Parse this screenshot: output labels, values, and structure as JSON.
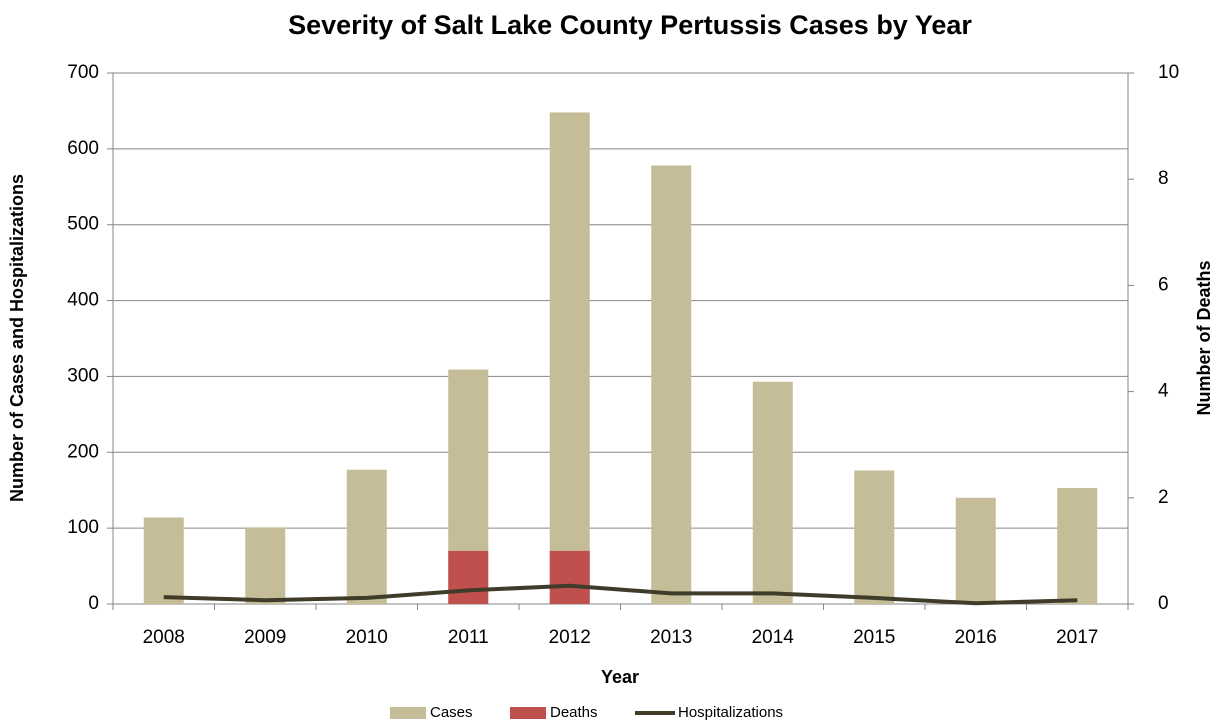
{
  "chart_data": {
    "type": "bar",
    "title": "Severity of Salt Lake County Pertussis Cases by Year",
    "x_label": "Year",
    "y_label": "Number of Cases and Hospitalizations",
    "y2_label": "Number of Deaths",
    "categories": [
      "2008",
      "2009",
      "2010",
      "2011",
      "2012",
      "2013",
      "2014",
      "2015",
      "2016",
      "2017"
    ],
    "series": [
      {
        "name": "Cases",
        "type": "bar",
        "color": "#c4bd97",
        "values": [
          114,
          101,
          177,
          309,
          648,
          578,
          293,
          176,
          140,
          153
        ]
      },
      {
        "name": "Deaths",
        "type": "bar",
        "axis": "y2",
        "color": "#c0504d",
        "values": [
          0,
          0,
          0,
          1,
          1,
          0,
          0,
          0,
          0,
          0
        ]
      },
      {
        "name": "Hospitalizations",
        "type": "line",
        "color": "#403c2a",
        "values": [
          9,
          5,
          8,
          18,
          24,
          14,
          14,
          8,
          1,
          5
        ]
      }
    ],
    "ylim": [
      0,
      700
    ],
    "yticks": [
      0,
      100,
      200,
      300,
      400,
      500,
      600,
      700
    ],
    "y2lim": [
      0,
      10
    ],
    "y2ticks": [
      0,
      2,
      4,
      6,
      8,
      10
    ],
    "grid": true,
    "legend": "bottom"
  }
}
